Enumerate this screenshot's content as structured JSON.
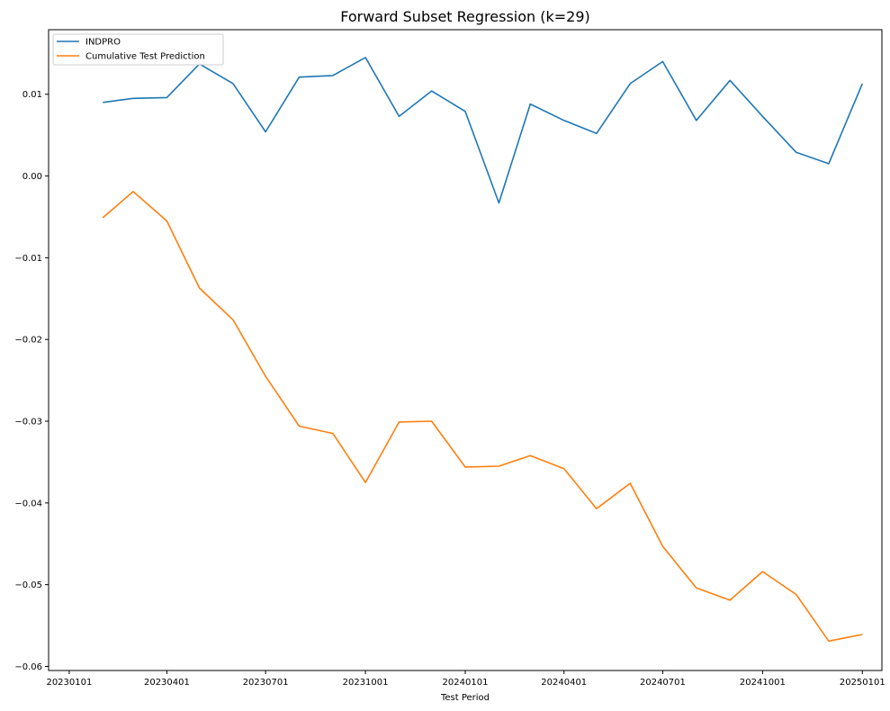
{
  "chart_data": {
    "type": "line",
    "title": "Forward Subset Regression (k=29)",
    "xlabel": "Test Period",
    "ylabel": "",
    "x": [
      "2023-02-01",
      "2023-03-01",
      "2023-04-01",
      "2023-05-01",
      "2023-06-01",
      "2023-07-01",
      "2023-08-01",
      "2023-09-01",
      "2023-10-01",
      "2023-11-01",
      "2023-12-01",
      "2024-01-01",
      "2024-02-01",
      "2024-03-01",
      "2024-04-01",
      "2024-05-01",
      "2024-06-01",
      "2024-07-01",
      "2024-08-01",
      "2024-09-01",
      "2024-10-01",
      "2024-11-01",
      "2024-12-01",
      "2025-01-01"
    ],
    "series": [
      {
        "name": "INDPRO",
        "color": "#1f77b4",
        "values": [
          0.009,
          0.0095,
          0.0096,
          0.0137,
          0.0113,
          0.0054,
          0.0121,
          0.0123,
          0.0145,
          0.0073,
          0.0104,
          0.0079,
          -0.0033,
          0.0088,
          0.0068,
          0.0052,
          0.0113,
          0.014,
          0.0068,
          0.0117,
          0.0073,
          0.0029,
          0.0015,
          0.0113
        ]
      },
      {
        "name": "Cumulative Test Prediction",
        "color": "#ff7f0e",
        "values": [
          -0.0051,
          -0.0019,
          -0.0055,
          -0.0137,
          -0.0176,
          -0.0245,
          -0.0306,
          -0.0315,
          -0.0375,
          -0.0301,
          -0.03,
          -0.0356,
          -0.0355,
          -0.0342,
          -0.0358,
          -0.0407,
          -0.0376,
          -0.0453,
          -0.0504,
          -0.0519,
          -0.0484,
          -0.0512,
          -0.0569,
          -0.0561
        ]
      }
    ],
    "x_ticks": [
      {
        "date": "2023-01-01",
        "label": "20230101"
      },
      {
        "date": "2023-04-01",
        "label": "20230401"
      },
      {
        "date": "2023-07-01",
        "label": "20230701"
      },
      {
        "date": "2023-10-01",
        "label": "20231001"
      },
      {
        "date": "2024-01-01",
        "label": "20240101"
      },
      {
        "date": "2024-04-01",
        "label": "20240401"
      },
      {
        "date": "2024-07-01",
        "label": "20240701"
      },
      {
        "date": "2024-10-01",
        "label": "20241001"
      },
      {
        "date": "2025-01-01",
        "label": "20250101"
      }
    ],
    "y_ticks": [
      {
        "value": 0.01,
        "label": "0.01"
      },
      {
        "value": 0.0,
        "label": "0.00"
      },
      {
        "value": -0.01,
        "label": "−0.01"
      },
      {
        "value": -0.02,
        "label": "−0.02"
      },
      {
        "value": -0.03,
        "label": "−0.03"
      },
      {
        "value": -0.04,
        "label": "−0.04"
      },
      {
        "value": -0.05,
        "label": "−0.05"
      },
      {
        "value": -0.06,
        "label": "−0.06"
      }
    ],
    "xlim": [
      "2022-12-13",
      "2025-01-19"
    ],
    "ylim": [
      -0.0605,
      0.0179
    ],
    "grid": false,
    "legend": "upper-left"
  }
}
